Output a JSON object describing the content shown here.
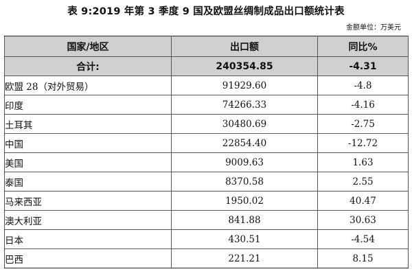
{
  "title": "表 9:2019 年第 3 季度 9 国及欧盟丝绸制成品出口额统计表",
  "unit_note": "金额单位：万美元",
  "headers": {
    "region": "国家/地区",
    "export": "出口额",
    "yoy": "同比%"
  },
  "total": {
    "label": "合计:",
    "export": "240354.85",
    "yoy": "-4.31"
  },
  "rows": [
    {
      "region": "欧盟 28（对外贸易）",
      "export": "91929.60",
      "yoy": "-4.8"
    },
    {
      "region": "印度",
      "export": "74266.33",
      "yoy": "-4.16"
    },
    {
      "region": "土耳其",
      "export": "30480.69",
      "yoy": "-2.75"
    },
    {
      "region": "中国",
      "export": "22854.40",
      "yoy": "-12.72"
    },
    {
      "region": "美国",
      "export": "9009.63",
      "yoy": "1.63"
    },
    {
      "region": "泰国",
      "export": "8370.58",
      "yoy": "2.55"
    },
    {
      "region": "马来西亚",
      "export": "1950.02",
      "yoy": "40.47"
    },
    {
      "region": "澳大利亚",
      "export": "841.88",
      "yoy": "30.63"
    },
    {
      "region": "日本",
      "export": "430.51",
      "yoy": "-4.54"
    },
    {
      "region": "巴西",
      "export": "221.21",
      "yoy": "8.15"
    }
  ]
}
